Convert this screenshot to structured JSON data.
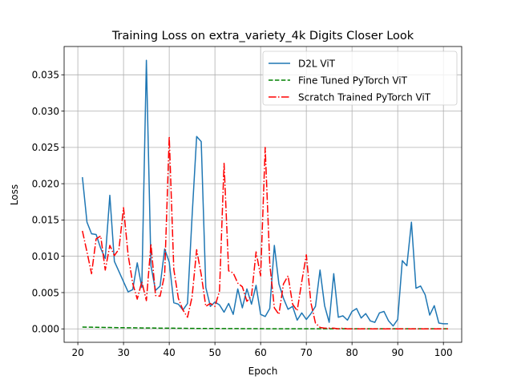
{
  "chart_data": {
    "type": "line",
    "title": "Training Loss on extra_variety_4k Digits Closer Look",
    "xlabel": "Epoch",
    "ylabel": "Loss",
    "xlim": [
      17,
      104
    ],
    "ylim": [
      -0.00185,
      0.0389
    ],
    "xticks": [
      20,
      30,
      40,
      50,
      60,
      70,
      80,
      90,
      100
    ],
    "yticks": [
      0.0,
      0.005,
      0.01,
      0.015,
      0.02,
      0.025,
      0.03,
      0.035
    ],
    "xtick_labels": [
      "20",
      "30",
      "40",
      "50",
      "60",
      "70",
      "80",
      "90",
      "100"
    ],
    "ytick_labels": [
      "0.000",
      "0.005",
      "0.010",
      "0.015",
      "0.020",
      "0.025",
      "0.030",
      "0.035"
    ],
    "grid": true,
    "legend": "upper-right",
    "series": [
      {
        "name": "D2L ViT",
        "color": "#1f77b4",
        "dash": "solid",
        "x_start": 21,
        "values": [
          0.0209,
          0.0147,
          0.0131,
          0.013,
          0.0111,
          0.0097,
          0.0184,
          0.0093,
          0.0079,
          0.0065,
          0.0051,
          0.0054,
          0.0091,
          0.0057,
          0.037,
          0.0087,
          0.0053,
          0.0059,
          0.011,
          0.0092,
          0.0036,
          0.0034,
          0.0026,
          0.0035,
          0.0155,
          0.0265,
          0.0258,
          0.0057,
          0.0031,
          0.0037,
          0.0033,
          0.0023,
          0.0035,
          0.002,
          0.0055,
          0.0029,
          0.0055,
          0.0034,
          0.006,
          0.002,
          0.0017,
          0.0028,
          0.0115,
          0.0062,
          0.0042,
          0.0027,
          0.0031,
          0.0012,
          0.0022,
          0.0013,
          0.0021,
          0.0031,
          0.0081,
          0.0032,
          0.0009,
          0.0076,
          0.0016,
          0.0018,
          0.0012,
          0.0024,
          0.0028,
          0.0015,
          0.0021,
          0.0011,
          0.0009,
          0.0022,
          0.0024,
          0.0011,
          0.0004,
          0.0013,
          0.0094,
          0.0087,
          0.0147,
          0.0056,
          0.0059,
          0.0047,
          0.0019,
          0.0032,
          0.0008,
          0.0007,
          0.0007
        ]
      },
      {
        "name": "Fine Tuned PyTorch ViT",
        "color": "#008000",
        "dash": "dashed",
        "x_start": 21,
        "values": [
          0.00025,
          0.00024,
          0.00023,
          0.00022,
          0.00021,
          0.0002,
          0.00019,
          0.00018,
          0.00017,
          0.00016,
          0.00015,
          0.00015,
          0.00014,
          0.00013,
          0.00012,
          0.00012,
          0.00011,
          0.0001,
          0.0001,
          9e-05,
          9e-05,
          8e-05,
          8e-05,
          7e-05,
          7e-05,
          6e-05,
          6e-05,
          6e-05,
          5e-05,
          5e-05,
          5e-05,
          4e-05,
          4e-05,
          4e-05,
          4e-05,
          3e-05,
          3e-05,
          3e-05,
          3e-05,
          3e-05,
          2e-05,
          2e-05,
          2e-05,
          2e-05,
          2e-05,
          2e-05,
          2e-05,
          1e-05,
          1e-05,
          1e-05,
          1e-05,
          1e-05,
          1e-05,
          1e-05,
          1e-05,
          1e-05,
          1e-05,
          1e-05,
          1e-05,
          1e-05,
          1e-05,
          1e-05,
          1e-05,
          1e-05,
          1e-05,
          1e-05,
          1e-05,
          1e-05,
          1e-05,
          1e-05,
          1e-05,
          1e-05,
          1e-05,
          1e-05,
          1e-05,
          1e-05,
          1e-05,
          1e-05,
          1e-05,
          1e-05,
          1e-05
        ]
      },
      {
        "name": "Scratch Trained PyTorch ViT",
        "color": "#ff0000",
        "dash": "dashdot",
        "x_start": 21,
        "values": [
          0.0135,
          0.0106,
          0.0076,
          0.0124,
          0.0128,
          0.0081,
          0.0115,
          0.0101,
          0.011,
          0.0167,
          0.0102,
          0.0063,
          0.0041,
          0.0065,
          0.0039,
          0.0117,
          0.0046,
          0.0045,
          0.0075,
          0.0265,
          0.0082,
          0.0042,
          0.0026,
          0.0016,
          0.0044,
          0.0109,
          0.0075,
          0.0031,
          0.0035,
          0.0031,
          0.0052,
          0.0228,
          0.008,
          0.0077,
          0.0063,
          0.0058,
          0.0038,
          0.0045,
          0.0106,
          0.0073,
          0.025,
          0.009,
          0.0029,
          0.002,
          0.0062,
          0.0073,
          0.0034,
          0.0025,
          0.0065,
          0.0102,
          0.0036,
          0.0008,
          0.0002,
          0.0001,
          0.0001,
          0.0001,
          0.0,
          0.0001,
          0.0,
          0.0,
          0.0,
          0.0,
          0.0,
          0.0,
          0.0,
          0.0,
          0.0,
          0.0,
          0.0,
          0.0,
          0.0,
          0.0,
          0.0,
          0.0,
          0.0,
          0.0,
          0.0,
          0.0,
          0.0,
          0.0,
          0.0
        ]
      }
    ]
  }
}
